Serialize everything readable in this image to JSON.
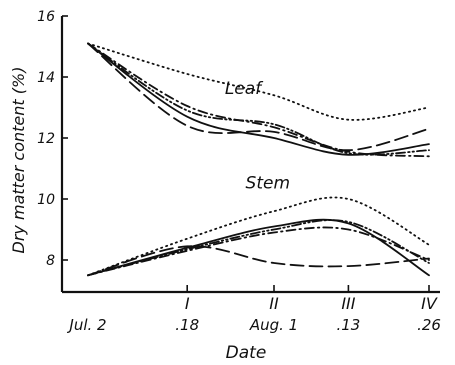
{
  "chart_data": {
    "type": "line",
    "title": "",
    "xlabel": "Date",
    "ylabel": "Dry matter content (%)",
    "x": [
      0,
      16,
      30,
      42,
      55
    ],
    "xlim": [
      0,
      55
    ],
    "ylim": [
      7,
      16
    ],
    "yticks": [
      8,
      10,
      12,
      14,
      16
    ],
    "xticks": [
      {
        "x": 0,
        "roman": "",
        "label": "Jul. 2"
      },
      {
        "x": 16,
        "roman": "I",
        "label": ".18"
      },
      {
        "x": 30,
        "roman": "II",
        "label": "Aug. 1"
      },
      {
        "x": 42,
        "roman": "III",
        "label": ".13"
      },
      {
        "x": 55,
        "roman": "IV",
        "label": ".26"
      }
    ],
    "group_labels": [
      {
        "text": "Leaf",
        "x": 25,
        "y": 13.45
      },
      {
        "text": "Stem",
        "x": 29,
        "y": 10.35
      }
    ],
    "series": [
      {
        "group": "Leaf",
        "style": "dotted",
        "values": [
          15.1,
          14.1,
          13.4,
          12.6,
          13.0
        ]
      },
      {
        "group": "Leaf",
        "style": "solid",
        "values": [
          15.1,
          12.7,
          12.0,
          11.45,
          11.8
        ]
      },
      {
        "group": "Leaf",
        "style": "dashed",
        "values": [
          15.1,
          12.4,
          12.2,
          11.6,
          12.3
        ]
      },
      {
        "group": "Leaf",
        "style": "dashdot",
        "values": [
          15.1,
          13.05,
          12.35,
          11.55,
          11.4
        ]
      },
      {
        "group": "Leaf",
        "style": "dashdotdot",
        "values": [
          15.1,
          12.9,
          12.45,
          11.5,
          11.6
        ]
      },
      {
        "group": "Stem",
        "style": "dotted",
        "values": [
          7.5,
          8.7,
          9.6,
          10.0,
          8.5
        ]
      },
      {
        "group": "Stem",
        "style": "solid",
        "values": [
          7.5,
          8.4,
          9.1,
          9.2,
          7.5
        ]
      },
      {
        "group": "Stem",
        "style": "dashed",
        "values": [
          7.5,
          8.45,
          7.9,
          7.8,
          8.05
        ]
      },
      {
        "group": "Stem",
        "style": "dashdot",
        "values": [
          7.5,
          8.3,
          8.9,
          9.0,
          8.0
        ]
      },
      {
        "group": "Stem",
        "style": "dashdotdot",
        "values": [
          7.5,
          8.35,
          9.0,
          9.25,
          7.9
        ]
      }
    ]
  }
}
